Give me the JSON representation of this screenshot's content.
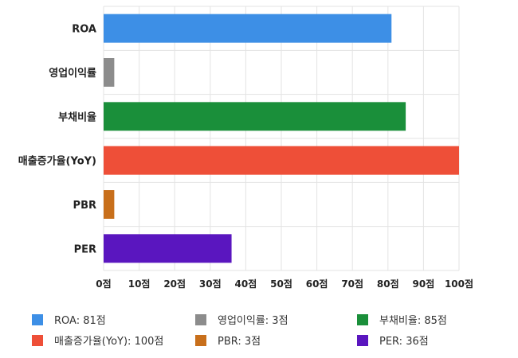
{
  "chart_data": {
    "type": "bar",
    "orientation": "horizontal",
    "categories": [
      "ROA",
      "영업이익률",
      "부채비율",
      "매출증가율(YoY)",
      "PBR",
      "PER"
    ],
    "values": [
      81,
      3,
      85,
      100,
      3,
      36
    ],
    "colors": [
      "#3d8fe6",
      "#8c8c8c",
      "#1a8f3a",
      "#ee4f38",
      "#c86f1b",
      "#5a16bf"
    ],
    "xlim": [
      0,
      100
    ],
    "xticks": [
      0,
      10,
      20,
      30,
      40,
      50,
      60,
      70,
      80,
      90,
      100
    ],
    "tick_suffix": "점",
    "grid": true,
    "legend": {
      "placement": "bottom",
      "entries": [
        "ROA: 81점",
        "영업이익률: 3점",
        "부채비율: 85점",
        "매출증가율(YoY): 100점",
        "PBR: 3점",
        "PER: 36점"
      ]
    }
  }
}
